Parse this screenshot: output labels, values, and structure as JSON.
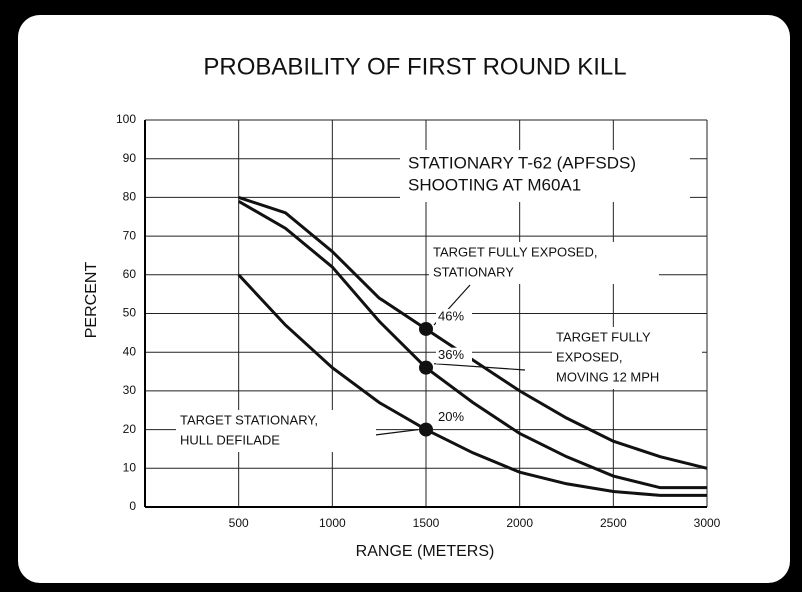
{
  "chart_data": {
    "type": "line",
    "title": "PROBABILITY OF FIRST ROUND KILL",
    "annotation": [
      "STATIONARY T-62 (APFSDS)",
      "SHOOTING AT M60A1"
    ],
    "xlabel": "RANGE (METERS)",
    "ylabel": "PERCENT",
    "x": [
      500,
      750,
      1000,
      1250,
      1500,
      1750,
      2000,
      2250,
      2500,
      2750,
      3000
    ],
    "series": [
      {
        "name": [
          "TARGET FULLY EXPOSED,",
          "STATIONARY"
        ],
        "color": "#111111",
        "values": [
          80,
          76,
          66,
          54,
          46,
          38,
          30,
          23,
          17,
          13,
          10
        ],
        "marker": {
          "x": 1500,
          "value": 46,
          "label": "46%"
        }
      },
      {
        "name": [
          "TARGET FULLY",
          "EXPOSED,",
          "MOVING 12 MPH"
        ],
        "color": "#111111",
        "values": [
          79,
          72,
          62,
          48,
          36,
          27,
          19,
          13,
          8,
          5,
          5
        ],
        "marker": {
          "x": 1500,
          "value": 36,
          "label": "36%"
        }
      },
      {
        "name": [
          "TARGET STATIONARY,",
          "HULL DEFILADE"
        ],
        "color": "#111111",
        "values": [
          60,
          47,
          36,
          27,
          20,
          14,
          9,
          6,
          4,
          3,
          3
        ],
        "marker": {
          "x": 1500,
          "value": 20,
          "label": "20%"
        }
      }
    ],
    "xlim": [
      0,
      3000
    ],
    "xticks": [
      500,
      1000,
      1500,
      2000,
      2500,
      3000
    ],
    "ylim": [
      0,
      100
    ],
    "yticks": [
      0,
      10,
      20,
      30,
      40,
      50,
      60,
      70,
      80,
      90,
      100
    ],
    "grid": true
  }
}
